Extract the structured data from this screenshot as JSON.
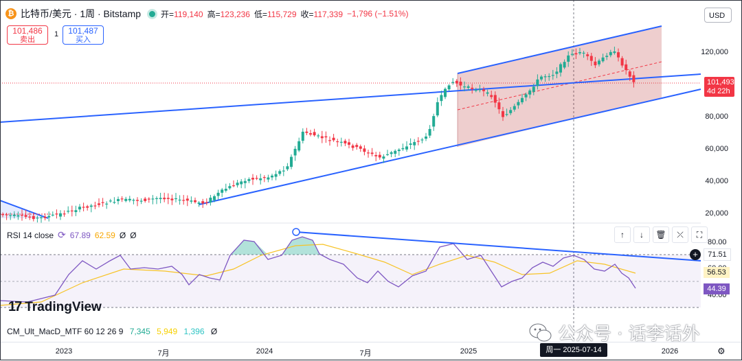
{
  "header": {
    "icon_letter": "₿",
    "title": "比特币/美元 · 1周 · Bitstamp",
    "open_label": "开",
    "open_value": "119,140",
    "high_label": "高",
    "high_value": "123,236",
    "low_label": "低",
    "low_value": "115,729",
    "close_label": "收",
    "close_value": "117,339",
    "change": "−1,796 (−1.51%)"
  },
  "trade": {
    "sell_price": "101,486",
    "sell_label": "卖出",
    "spread": "1",
    "buy_price": "101,487",
    "buy_label": "买入"
  },
  "currency": "USD",
  "price_axis": [
    "120,000",
    "100,000",
    "80,000",
    "60,000",
    "40,000",
    "20,000"
  ],
  "last_price": {
    "price": "101,493",
    "countdown": "4d 22h"
  },
  "rsi": {
    "title": "RSI 14 close",
    "value1": "67.89",
    "value2": "62.59",
    "extra1": "Ø",
    "extra2": "Ø",
    "axis": [
      "80.00",
      "60.00",
      "40.00"
    ],
    "tags": {
      "upper": "71.51",
      "ma": "56.53",
      "rsi": "44.39"
    },
    "tag_colors": {
      "upper": "#ffffff",
      "ma": "#fff3c4",
      "rsi": "#7e57c2"
    }
  },
  "tools": {
    "up": "↑",
    "down": "↓",
    "delete": "🗑",
    "collapse": "⤫",
    "maximize": "⛶"
  },
  "logo": {
    "text": "TradingView"
  },
  "macd": {
    "title": "CM_Ult_MacD_MTF 60 12 26 9",
    "v1": "7,345",
    "v2": "5,949",
    "v3": "1,396",
    "v4": "Ø"
  },
  "watermark": "公众号 · 话李话外",
  "time_axis": [
    "2023",
    "7月",
    "2024",
    "7月",
    "2025",
    "2026"
  ],
  "crosshair_label": "周一  2025-07-14",
  "colors": {
    "up": "#22ab94",
    "down": "#f23645",
    "trend": "#2962ff",
    "channel": "rgba(178,34,34,0.22)",
    "rsi": "#7e57c2",
    "rsi_ma": "#f7c325"
  }
}
